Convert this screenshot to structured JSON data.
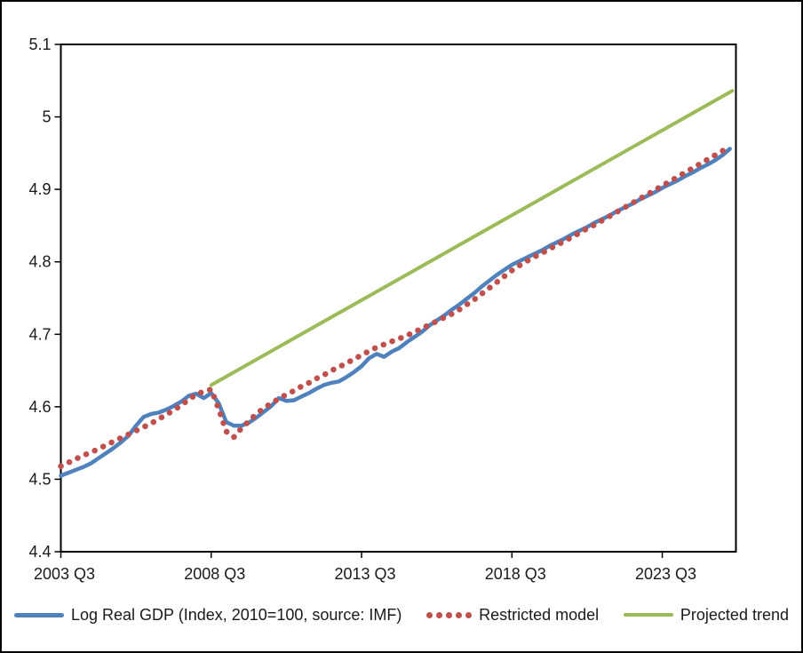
{
  "figure": {
    "background": "#ffffff",
    "border_color": "#000000",
    "axis_color": "#000000",
    "text_color": "#1a1a1a"
  },
  "chart_data": {
    "type": "line",
    "title": "",
    "xlabel": "",
    "ylabel": "",
    "grid": false,
    "x_axis": {
      "range": [
        2003.5,
        2025.95
      ],
      "tick_positions": [
        2003.5,
        2008.5,
        2013.5,
        2018.5,
        2023.5
      ],
      "tick_labels": [
        "2003 Q3",
        "2008 Q3",
        "2013 Q3",
        "2018 Q3",
        "2023 Q3"
      ]
    },
    "y_axis": {
      "range": [
        4.4,
        5.1
      ],
      "tick_values": [
        5.1,
        5.0,
        4.9,
        4.8,
        4.7,
        4.6,
        4.5,
        4.4
      ],
      "tick_labels": [
        "5.1",
        "5",
        "4.9",
        "4.8",
        "4.7",
        "4.6",
        "4.5",
        "4.4"
      ]
    },
    "legend": {
      "position": "bottom"
    },
    "series": [
      {
        "name": "Log Real GDP (Index, 2010=100, source: IMF)",
        "color": "#4F81BD",
        "style": "solid",
        "line_width": 4.5,
        "x_start": 2003.5,
        "x_step": 0.25,
        "y": [
          4.505,
          4.509,
          4.513,
          4.517,
          4.522,
          4.529,
          4.536,
          4.543,
          4.551,
          4.56,
          4.574,
          4.586,
          4.59,
          4.592,
          4.596,
          4.601,
          4.607,
          4.615,
          4.618,
          4.612,
          4.619,
          4.605,
          4.579,
          4.574,
          4.574,
          4.578,
          4.585,
          4.593,
          4.601,
          4.612,
          4.608,
          4.609,
          4.614,
          4.619,
          4.625,
          4.63,
          4.633,
          4.635,
          4.641,
          4.648,
          4.656,
          4.667,
          4.673,
          4.669,
          4.676,
          4.681,
          4.689,
          4.696,
          4.703,
          4.712,
          4.719,
          4.726,
          4.734,
          4.741,
          4.749,
          4.757,
          4.766,
          4.774,
          4.782,
          4.789,
          4.796,
          4.801,
          4.806,
          4.811,
          4.816,
          4.822,
          4.827,
          4.832,
          4.838,
          4.843,
          4.848,
          4.854,
          4.859,
          4.864,
          4.87,
          4.875,
          4.88,
          4.886,
          4.891,
          4.896,
          4.902,
          4.907,
          4.912,
          4.918,
          4.923,
          4.929,
          4.934,
          4.94,
          4.947,
          4.956
        ]
      },
      {
        "name": "Restricted model",
        "color": "#C0504D",
        "style": "dotted",
        "line_width": 6.5,
        "x_start": 2003.5,
        "x_step": 0.25,
        "y": [
          4.518,
          4.523,
          4.528,
          4.533,
          4.537,
          4.542,
          4.547,
          4.552,
          4.557,
          4.562,
          4.567,
          4.572,
          4.577,
          4.583,
          4.589,
          4.595,
          4.602,
          4.61,
          4.617,
          4.621,
          4.624,
          4.597,
          4.566,
          4.558,
          4.57,
          4.58,
          4.59,
          4.598,
          4.605,
          4.611,
          4.617,
          4.622,
          4.628,
          4.633,
          4.639,
          4.644,
          4.65,
          4.655,
          4.66,
          4.666,
          4.671,
          4.677,
          4.682,
          4.686,
          4.69,
          4.694,
          4.698,
          4.703,
          4.708,
          4.713,
          4.718,
          4.723,
          4.728,
          4.734,
          4.741,
          4.748,
          4.756,
          4.764,
          4.772,
          4.78,
          4.788,
          4.795,
          4.801,
          4.807,
          4.812,
          4.818,
          4.823,
          4.829,
          4.834,
          4.84,
          4.846,
          4.851,
          4.857,
          4.863,
          4.869,
          4.875,
          4.881,
          4.887,
          4.893,
          4.899,
          4.905,
          4.911,
          4.917,
          4.923,
          4.929,
          4.935,
          4.941,
          4.947,
          4.953,
          4.96
        ]
      },
      {
        "name": "Projected trend",
        "color": "#9BBB59",
        "style": "solid",
        "line_width": 4,
        "x": [
          2008.5,
          2025.83
        ],
        "y": [
          4.63,
          5.036
        ]
      }
    ]
  }
}
